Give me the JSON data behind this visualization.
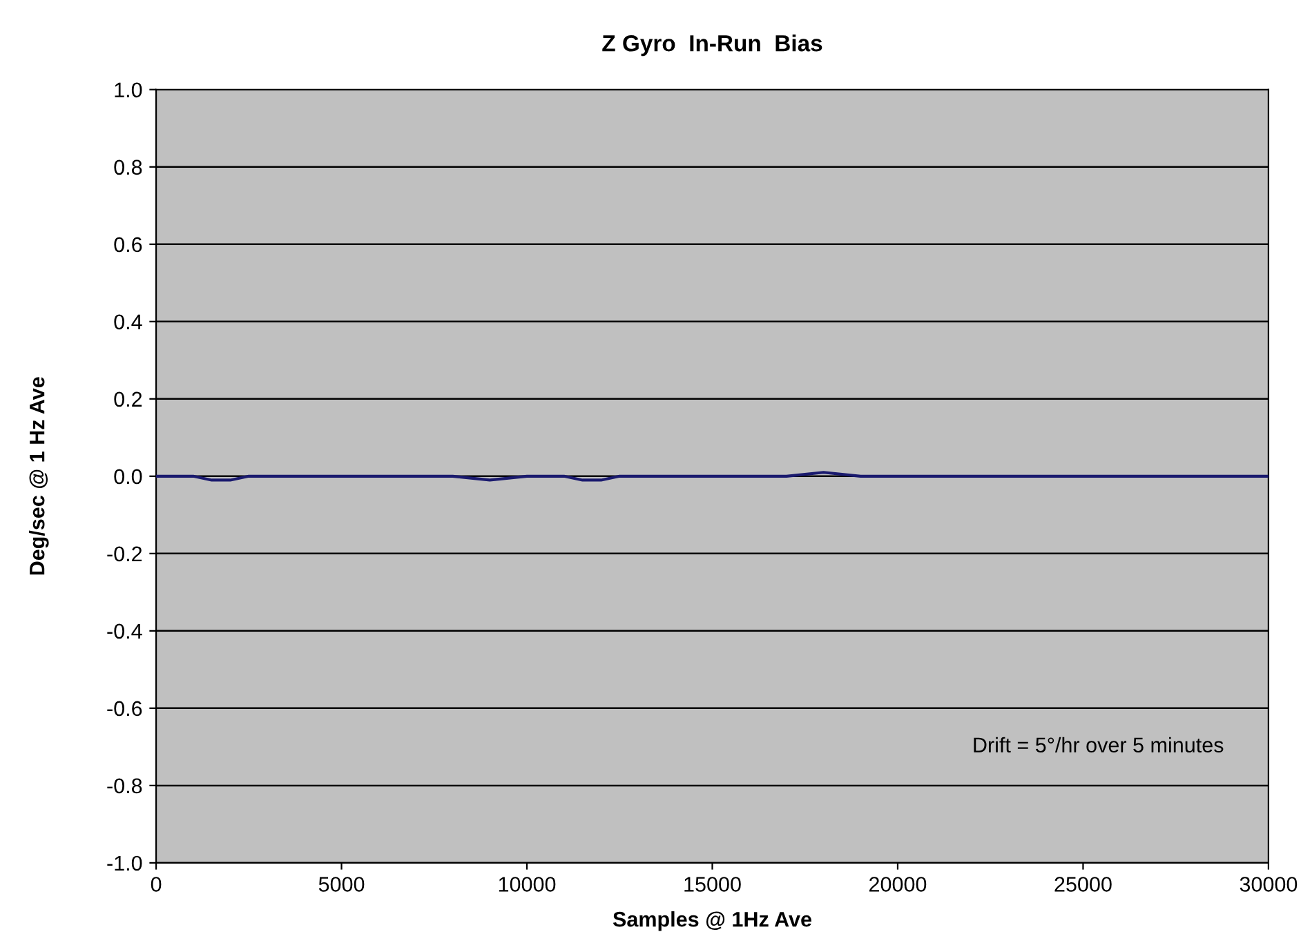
{
  "chart_data": {
    "type": "line",
    "title": "Z Gyro  In-Run  Bias",
    "xlabel": "Samples @ 1Hz Ave",
    "ylabel": "Deg/sec @ 1 Hz Ave",
    "x": [
      0,
      1000,
      1500,
      2000,
      2500,
      3000,
      4000,
      5000,
      6000,
      7000,
      8000,
      9000,
      10000,
      11000,
      11500,
      12000,
      12500,
      13000,
      14000,
      15000,
      16000,
      17000,
      18000,
      19000,
      20000,
      21000,
      22000,
      23000,
      24000,
      25000,
      26000,
      27000,
      28000,
      29000,
      30000
    ],
    "series": [
      {
        "color": "#1a1a6e",
        "values": [
          0.0,
          0.0,
          -0.01,
          -0.01,
          0.0,
          0.0,
          0.0,
          0.0,
          0.0,
          0.0,
          0.0,
          -0.01,
          0.0,
          0.0,
          -0.01,
          -0.01,
          0.0,
          0.0,
          0.0,
          0.0,
          0.0,
          0.0,
          0.01,
          0.0,
          0.0,
          0.0,
          0.0,
          0.0,
          0.0,
          0.0,
          0.0,
          0.0,
          0.0,
          0.0,
          0.0
        ]
      }
    ],
    "xlim": [
      0,
      30000
    ],
    "ylim": [
      -1.0,
      1.0
    ],
    "xticks": [
      0,
      5000,
      10000,
      15000,
      20000,
      25000,
      30000
    ],
    "yticks": [
      {
        "value": -1.0,
        "label": "-1.0"
      },
      {
        "value": -0.8,
        "label": "-0.8"
      },
      {
        "value": -0.6,
        "label": "-0.6"
      },
      {
        "value": -0.4,
        "label": "-0.4"
      },
      {
        "value": -0.2,
        "label": "-0.2"
      },
      {
        "value": 0.0,
        "label": "0.0"
      },
      {
        "value": 0.2,
        "label": "0.2"
      },
      {
        "value": 0.4,
        "label": "0.4"
      },
      {
        "value": 0.6,
        "label": "0.6"
      },
      {
        "value": 0.8,
        "label": "0.8"
      },
      {
        "value": 1.0,
        "label": "1.0"
      }
    ],
    "grid": "y",
    "annotations": [
      "Drift = 5°/hr over 5 minutes"
    ]
  }
}
